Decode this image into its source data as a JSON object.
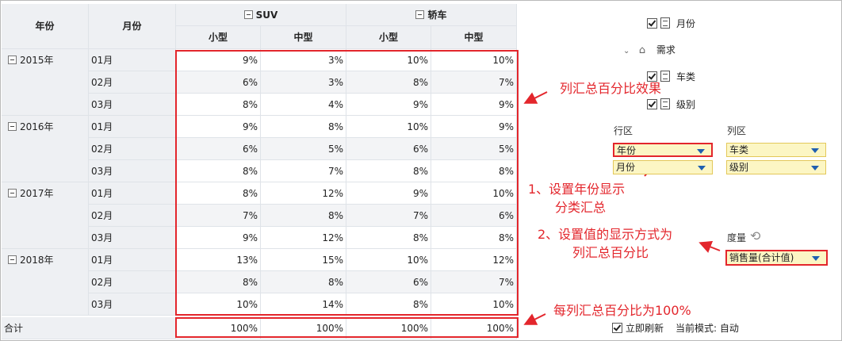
{
  "table": {
    "header": {
      "year": "年份",
      "month": "月份",
      "groups": [
        "SUV",
        "轿车"
      ],
      "sub": [
        "小型",
        "中型",
        "小型",
        "中型"
      ]
    },
    "years": [
      {
        "label": "2015年",
        "rows": [
          {
            "month": "01月",
            "values": [
              "9%",
              "3%",
              "10%",
              "10%"
            ]
          },
          {
            "month": "02月",
            "values": [
              "6%",
              "3%",
              "8%",
              "7%"
            ]
          },
          {
            "month": "03月",
            "values": [
              "8%",
              "4%",
              "9%",
              "9%"
            ]
          }
        ]
      },
      {
        "label": "2016年",
        "rows": [
          {
            "month": "01月",
            "values": [
              "9%",
              "8%",
              "10%",
              "9%"
            ]
          },
          {
            "month": "02月",
            "values": [
              "6%",
              "5%",
              "6%",
              "5%"
            ]
          },
          {
            "month": "03月",
            "values": [
              "8%",
              "7%",
              "8%",
              "8%"
            ]
          }
        ]
      },
      {
        "label": "2017年",
        "rows": [
          {
            "month": "01月",
            "values": [
              "8%",
              "12%",
              "9%",
              "10%"
            ]
          },
          {
            "month": "02月",
            "values": [
              "7%",
              "8%",
              "7%",
              "6%"
            ]
          },
          {
            "month": "03月",
            "values": [
              "9%",
              "12%",
              "8%",
              "8%"
            ]
          }
        ]
      },
      {
        "label": "2018年",
        "rows": [
          {
            "month": "01月",
            "values": [
              "13%",
              "15%",
              "10%",
              "12%"
            ]
          },
          {
            "month": "02月",
            "values": [
              "8%",
              "8%",
              "6%",
              "7%"
            ]
          },
          {
            "month": "03月",
            "values": [
              "10%",
              "14%",
              "8%",
              "10%"
            ]
          }
        ]
      }
    ],
    "total": {
      "label": "合计",
      "values": [
        "100%",
        "100%",
        "100%",
        "100%"
      ]
    }
  },
  "annotations": {
    "col_pct": "列汇总百分比效果",
    "step1_line1": "1、设置年份显示",
    "step1_line2": "分类汇总",
    "step2_line1": "2、设置值的显示方式为",
    "step2_line2": "列汇总百分比",
    "total_note": "每列汇总百分比为100%"
  },
  "panel": {
    "tree": {
      "month": "月份",
      "demand": "需求",
      "car_type": "车类",
      "level": "级别"
    },
    "row_zone": {
      "title": "行区",
      "items": [
        "年份",
        "月份"
      ]
    },
    "col_zone": {
      "title": "列区",
      "items": [
        "车类",
        "级别"
      ]
    },
    "measure": {
      "title": "度量",
      "item": "销售量(合计值)"
    },
    "footer": {
      "refresh": "立即刷新",
      "mode_label": "当前模式:",
      "mode_value": "自动"
    }
  },
  "colors": {
    "accent_red": "#e3262c",
    "header_bg": "#eef0f3",
    "zone_bg": "#fcf6c4"
  }
}
